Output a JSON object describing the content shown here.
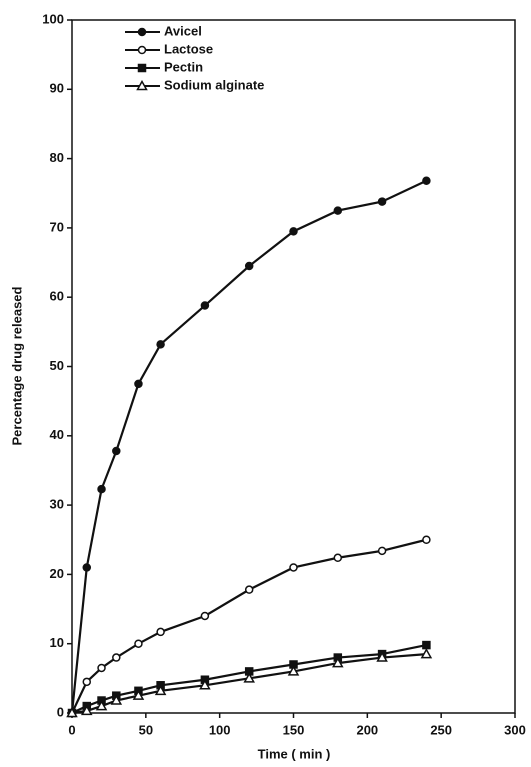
{
  "chart_data": {
    "type": "line",
    "x_label": "Time ( min )",
    "y_label": "Percentage drug released",
    "x": [
      0,
      10,
      20,
      30,
      45,
      60,
      90,
      120,
      150,
      180,
      210,
      240
    ],
    "series": [
      {
        "name": "Avicel",
        "color": "#111111",
        "marker": "circle-filled",
        "values": [
          0,
          21,
          32.3,
          37.8,
          47.5,
          53.2,
          58.8,
          64.5,
          69.5,
          72.5,
          73.8,
          76.8
        ]
      },
      {
        "name": "Lactose",
        "color": "#111111",
        "marker": "circle-open",
        "values": [
          0,
          4.5,
          6.5,
          8,
          10,
          11.7,
          14,
          17.8,
          21,
          22.4,
          23.4,
          25
        ]
      },
      {
        "name": "Pectin",
        "color": "#111111",
        "marker": "square-filled",
        "values": [
          0,
          1,
          1.8,
          2.5,
          3.2,
          4,
          4.8,
          6,
          7,
          8,
          8.5,
          9.8
        ]
      },
      {
        "name": "Sodium alginate",
        "color": "#111111",
        "marker": "triangle-open",
        "values": [
          0,
          0.3,
          1,
          1.8,
          2.5,
          3.2,
          4,
          5,
          6,
          7.2,
          8,
          8.5
        ]
      }
    ],
    "xlim": [
      0,
      300
    ],
    "xticks": [
      0,
      50,
      100,
      150,
      200,
      250,
      300
    ],
    "ylim": [
      0,
      100
    ],
    "yticks": [
      0,
      10,
      20,
      30,
      40,
      50,
      60,
      70,
      80,
      90,
      100
    ],
    "legend": "upper-left"
  }
}
